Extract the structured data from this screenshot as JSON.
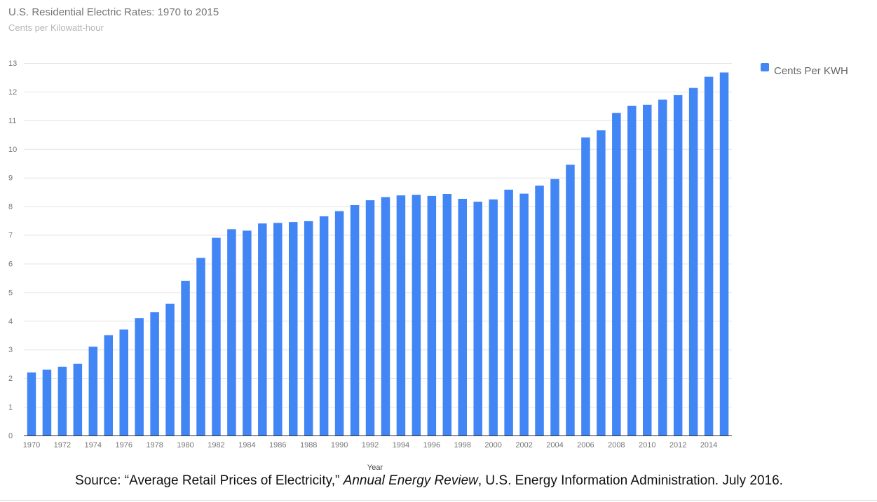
{
  "chart_data": {
    "type": "bar",
    "title": "U.S. Residential Electric Rates: 1970 to 2015",
    "subtitle": "Cents per Kilowatt-hour",
    "xlabel": "Year",
    "ylabel": "",
    "ylim": [
      0,
      13
    ],
    "yticks": [
      "0",
      "1",
      "2",
      "3",
      "4",
      "5",
      "6",
      "7",
      "8",
      "9",
      "10",
      "11",
      "12",
      "13"
    ],
    "grid": true,
    "legend_position": "right",
    "bar_color": "#4285f4",
    "categories": [
      "1970",
      "1971",
      "1972",
      "1973",
      "1974",
      "1975",
      "1976",
      "1977",
      "1978",
      "1979",
      "1980",
      "1981",
      "1982",
      "1983",
      "1984",
      "1985",
      "1986",
      "1987",
      "1988",
      "1989",
      "1990",
      "1991",
      "1992",
      "1993",
      "1994",
      "1995",
      "1996",
      "1997",
      "1998",
      "1999",
      "2000",
      "2001",
      "2002",
      "2003",
      "2004",
      "2005",
      "2006",
      "2007",
      "2008",
      "2009",
      "2010",
      "2011",
      "2012",
      "2013",
      "2014",
      "2015"
    ],
    "x_tick_labels": [
      "1970",
      "1972",
      "1974",
      "1976",
      "1978",
      "1980",
      "1982",
      "1984",
      "1986",
      "1988",
      "1990",
      "1992",
      "1994",
      "1996",
      "1998",
      "2000",
      "2002",
      "2004",
      "2006",
      "2008",
      "2010",
      "2012",
      "2014"
    ],
    "series": [
      {
        "name": "Cents Per KWH",
        "color": "#4285f4",
        "values": [
          2.2,
          2.3,
          2.4,
          2.5,
          3.1,
          3.5,
          3.7,
          4.1,
          4.3,
          4.6,
          5.4,
          6.2,
          6.9,
          7.2,
          7.15,
          7.4,
          7.42,
          7.45,
          7.48,
          7.65,
          7.83,
          8.04,
          8.21,
          8.32,
          8.38,
          8.4,
          8.36,
          8.43,
          8.26,
          8.16,
          8.24,
          8.58,
          8.44,
          8.72,
          8.95,
          9.45,
          10.4,
          10.65,
          11.26,
          11.51,
          11.54,
          11.72,
          11.88,
          12.13,
          12.52,
          12.67
        ]
      }
    ]
  },
  "source": {
    "prefix": "Source: “Average Retail Prices of Electricity,” ",
    "publication": "Annual Energy Review",
    "suffix": ", U.S. Energy Information Administration. July 2016."
  }
}
